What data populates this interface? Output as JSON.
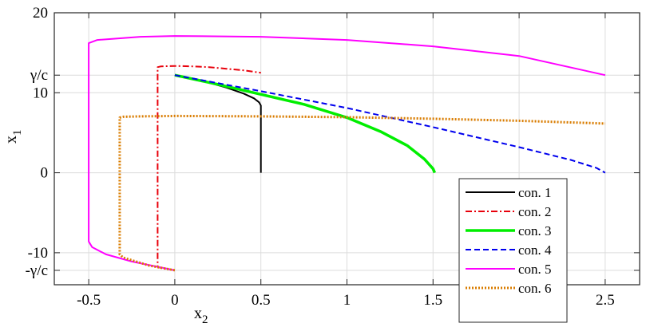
{
  "chart_data": {
    "type": "line",
    "title": "",
    "xlabel": "x",
    "xlabel_sub": "2",
    "ylabel": "x",
    "ylabel_sub": "1",
    "xlim": [
      -0.7,
      2.7
    ],
    "ylim": [
      -14,
      20
    ],
    "x_ticks": [
      {
        "value": -0.5,
        "label": "-0.5"
      },
      {
        "value": 0,
        "label": "0"
      },
      {
        "value": 0.5,
        "label": "0.5"
      },
      {
        "value": 1,
        "label": "1"
      },
      {
        "value": 1.5,
        "label": "1.5"
      },
      {
        "value": 2,
        "label": "2"
      },
      {
        "value": 2.5,
        "label": "2.5"
      }
    ],
    "y_ticks": [
      {
        "value": -12.2,
        "label": "-γ/c"
      },
      {
        "value": -10,
        "label": "-10"
      },
      {
        "value": 0,
        "label": "0"
      },
      {
        "value": 10,
        "label": "10"
      },
      {
        "value": 12.2,
        "label": "γ/c"
      },
      {
        "value": 20,
        "label": "20"
      }
    ],
    "grid": true,
    "legend_position": "bottom-right",
    "series": [
      {
        "name": "con. 1",
        "color": "#000000",
        "dash": "solid",
        "width": 2,
        "x": [
          0,
          0.1,
          0.2,
          0.3,
          0.4,
          0.46,
          0.49,
          0.5,
          0.5
        ],
        "y": [
          12.2,
          11.75,
          11.25,
          10.65,
          9.9,
          9.3,
          8.8,
          8.4,
          0
        ]
      },
      {
        "name": "con. 2",
        "color": "#e8000b",
        "dash": "dashdot",
        "width": 2,
        "x": [
          0,
          -0.05,
          -0.1,
          -0.1,
          -0.08,
          0,
          0.1,
          0.2,
          0.3,
          0.4,
          0.5
        ],
        "y": [
          -12.2,
          -12.0,
          -11.8,
          13.2,
          13.3,
          13.35,
          13.3,
          13.2,
          13.0,
          12.8,
          12.5
        ]
      },
      {
        "name": "con. 3",
        "color": "#00ee00",
        "dash": "solid",
        "width": 3.5,
        "x": [
          0,
          0.25,
          0.5,
          0.75,
          1.0,
          1.2,
          1.35,
          1.45,
          1.5,
          1.51
        ],
        "y": [
          12.2,
          11.05,
          9.8,
          8.55,
          6.9,
          5.1,
          3.4,
          1.7,
          0.5,
          0
        ]
      },
      {
        "name": "con. 4",
        "color": "#0000ee",
        "dash": "dashed",
        "width": 2,
        "x": [
          0,
          0.5,
          1.0,
          1.5,
          2.0,
          2.3,
          2.45,
          2.5
        ],
        "y": [
          12.2,
          10.2,
          8.1,
          5.7,
          3.2,
          1.6,
          0.6,
          0
        ]
      },
      {
        "name": "con. 5",
        "color": "#ff00ff",
        "dash": "solid",
        "width": 2,
        "x": [
          0,
          -0.25,
          -0.4,
          -0.48,
          -0.5,
          -0.5,
          -0.45,
          -0.2,
          0,
          0.5,
          1.0,
          1.5,
          2.0,
          2.5
        ],
        "y": [
          -12.2,
          -11.1,
          -10.2,
          -9.3,
          -8.6,
          16.2,
          16.6,
          17.0,
          17.1,
          17.0,
          16.6,
          15.8,
          14.6,
          12.2
        ]
      },
      {
        "name": "con. 6",
        "color": "#d97c00",
        "dash": "dotted",
        "width": 3,
        "x": [
          0,
          -0.15,
          -0.3,
          -0.32,
          -0.32,
          -0.3,
          -0.2,
          0,
          0.5,
          1.0,
          1.5,
          2.0,
          2.5
        ],
        "y": [
          -12.2,
          -11.6,
          -10.6,
          -10.2,
          6.9,
          7.0,
          7.05,
          7.1,
          7.05,
          6.95,
          6.75,
          6.5,
          6.15
        ]
      }
    ]
  }
}
